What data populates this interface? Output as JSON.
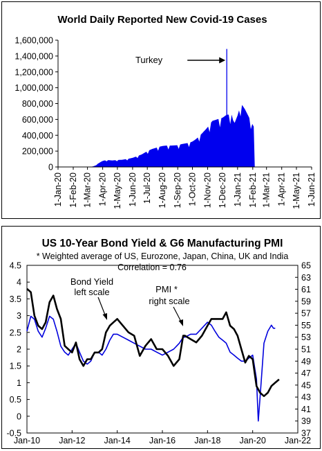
{
  "chart_data": [
    {
      "type": "bar",
      "title": "World Daily Reported New Covid-19 Cases",
      "xlabel": "",
      "ylabel": "",
      "ylim": [
        0,
        1600000
      ],
      "y_ticks": [
        "0",
        "200,000",
        "400,000",
        "600,000",
        "800,000",
        "1,000,000",
        "1,200,000",
        "1,400,000",
        "1,600,000"
      ],
      "x_ticks": [
        "1-Jan-20",
        "1-Feb-20",
        "1-Mar-20",
        "1-Apr-20",
        "1-May-20",
        "1-Jun-20",
        "1-Jul-20",
        "1-Aug-20",
        "1-Sep-20",
        "1-Oct-20",
        "1-Nov-20",
        "1-Dec-20",
        "1-Jan-21",
        "1-Feb-21",
        "1-Mar-21",
        "1-Apr-21",
        "1-May-21",
        "1-Jun-21"
      ],
      "x_range": [
        "2020-01-01",
        "2021-06-01"
      ],
      "grid": false,
      "bar_color": "#0000ee",
      "annotation": {
        "text": "Turkey",
        "date": "2020-12-10",
        "value": 1490000
      },
      "series": [
        {
          "values": [
            [
              "2020-01-22",
              600
            ],
            [
              "2020-02-01",
              2100
            ],
            [
              "2020-02-10",
              3000
            ],
            [
              "2020-02-20",
              1200
            ],
            [
              "2020-03-01",
              2000
            ],
            [
              "2020-03-10",
              4500
            ],
            [
              "2020-03-15",
              12000
            ],
            [
              "2020-03-20",
              32000
            ],
            [
              "2020-03-25",
              52000
            ],
            [
              "2020-04-01",
              77000
            ],
            [
              "2020-04-10",
              88000
            ],
            [
              "2020-04-20",
              82000
            ],
            [
              "2020-05-01",
              88000
            ],
            [
              "2020-05-10",
              90000
            ],
            [
              "2020-05-20",
              100000
            ],
            [
              "2020-06-01",
              115000
            ],
            [
              "2020-06-10",
              135000
            ],
            [
              "2020-06-20",
              160000
            ],
            [
              "2020-07-01",
              200000
            ],
            [
              "2020-07-10",
              225000
            ],
            [
              "2020-07-20",
              245000
            ],
            [
              "2020-08-01",
              265000
            ],
            [
              "2020-08-10",
              270000
            ],
            [
              "2020-08-20",
              270000
            ],
            [
              "2020-09-01",
              275000
            ],
            [
              "2020-09-10",
              290000
            ],
            [
              "2020-09-20",
              300000
            ],
            [
              "2020-10-01",
              320000
            ],
            [
              "2020-10-10",
              360000
            ],
            [
              "2020-10-20",
              420000
            ],
            [
              "2020-11-01",
              500000
            ],
            [
              "2020-11-10",
              580000
            ],
            [
              "2020-11-20",
              600000
            ],
            [
              "2020-12-01",
              620000
            ],
            [
              "2020-12-10",
              660000
            ],
            [
              "2020-12-20",
              660000
            ],
            [
              "2020-12-25",
              540000
            ],
            [
              "2021-01-01",
              650000
            ],
            [
              "2021-01-08",
              800000
            ],
            [
              "2021-01-15",
              740000
            ],
            [
              "2021-01-20",
              680000
            ],
            [
              "2021-01-25",
              620000
            ],
            [
              "2021-02-01",
              530000
            ],
            [
              "2021-02-05",
              490000
            ]
          ]
        }
      ]
    },
    {
      "type": "line",
      "title": "US 10-Year Bond Yield & G6 Manufacturing PMI",
      "subtitle": "* Weighted average of US, Eurozone, Japan, China, UK and India",
      "annotations": [
        "Correlation = 0.76",
        "Bond Yield",
        "left scale",
        "PMI *",
        "right scale"
      ],
      "x_ticks": [
        "Jan-10",
        "Jan-12",
        "Jan-14",
        "Jan-16",
        "Jan-18",
        "Jan-20",
        "Jan-22"
      ],
      "x_range": [
        2010,
        2022
      ],
      "y_left": {
        "ylim": [
          -0.5,
          4.5
        ],
        "ticks": [
          "4.5",
          "4",
          "3.5",
          "3",
          "2.5",
          "2",
          "1.5",
          "1",
          "0.5",
          "0",
          "-0.5"
        ]
      },
      "y_right": {
        "ylim": [
          37,
          65
        ],
        "ticks": [
          "65",
          "63",
          "61",
          "59",
          "57",
          "55",
          "53",
          "51",
          "49",
          "47",
          "45",
          "43",
          "41",
          "39",
          "37"
        ]
      },
      "grid": false,
      "series": [
        {
          "axis": "left",
          "color": "#000000",
          "x": [
            2010.0,
            2010.17,
            2010.33,
            2010.5,
            2010.67,
            2010.83,
            2011.0,
            2011.17,
            2011.33,
            2011.5,
            2011.67,
            2011.83,
            2012.0,
            2012.17,
            2012.33,
            2012.5,
            2012.67,
            2012.83,
            2013.0,
            2013.17,
            2013.33,
            2013.5,
            2013.67,
            2013.83,
            2014.0,
            2014.25,
            2014.5,
            2014.75,
            2015.0,
            2015.25,
            2015.5,
            2015.75,
            2016.0,
            2016.25,
            2016.5,
            2016.75,
            2016.92,
            2017.0,
            2017.25,
            2017.5,
            2017.75,
            2018.0,
            2018.17,
            2018.33,
            2018.5,
            2018.67,
            2018.83,
            2019.0,
            2019.17,
            2019.33,
            2019.5,
            2019.67,
            2019.83,
            2020.0,
            2020.17,
            2020.33,
            2020.5,
            2020.67,
            2020.83,
            2021.0,
            2021.17
          ],
          "values": [
            3.8,
            3.7,
            3.0,
            2.7,
            2.6,
            2.8,
            3.4,
            3.6,
            3.2,
            2.9,
            2.1,
            2.0,
            1.9,
            2.2,
            1.7,
            1.5,
            1.7,
            1.7,
            1.9,
            1.9,
            2.0,
            2.5,
            2.7,
            2.8,
            2.9,
            2.7,
            2.5,
            2.4,
            1.8,
            2.1,
            2.3,
            2.0,
            2.0,
            1.8,
            1.5,
            1.7,
            2.4,
            2.4,
            2.3,
            2.2,
            2.4,
            2.7,
            2.9,
            2.9,
            2.9,
            2.9,
            3.1,
            2.7,
            2.6,
            2.4,
            2.0,
            1.6,
            1.8,
            1.7,
            0.9,
            0.7,
            0.6,
            0.7,
            0.9,
            1.0,
            1.1
          ]
        },
        {
          "axis": "right",
          "color": "#0000dd",
          "x": [
            2010.0,
            2010.17,
            2010.33,
            2010.5,
            2010.67,
            2010.83,
            2011.0,
            2011.17,
            2011.33,
            2011.5,
            2011.67,
            2011.83,
            2012.0,
            2012.17,
            2012.33,
            2012.5,
            2012.67,
            2012.83,
            2013.0,
            2013.17,
            2013.33,
            2013.5,
            2013.67,
            2013.83,
            2014.0,
            2014.25,
            2014.5,
            2014.75,
            2015.0,
            2015.25,
            2015.5,
            2015.75,
            2016.0,
            2016.25,
            2016.5,
            2016.75,
            2016.92,
            2017.0,
            2017.25,
            2017.5,
            2017.75,
            2018.0,
            2018.17,
            2018.33,
            2018.5,
            2018.67,
            2018.83,
            2019.0,
            2019.17,
            2019.33,
            2019.5,
            2019.67,
            2019.83,
            2020.0,
            2020.17,
            2020.25,
            2020.33,
            2020.5,
            2020.67,
            2020.83,
            2020.92,
            2021.0
          ],
          "values": [
            54.0,
            56.5,
            56.0,
            54.0,
            53.0,
            54.5,
            56.5,
            56.0,
            54.0,
            51.5,
            50.5,
            50.0,
            51.0,
            52.0,
            50.5,
            49.0,
            48.5,
            49.0,
            50.5,
            50.5,
            50.0,
            51.0,
            52.5,
            53.5,
            53.5,
            53.0,
            52.5,
            52.0,
            51.5,
            51.0,
            51.0,
            50.5,
            50.0,
            50.5,
            51.0,
            52.0,
            53.0,
            53.0,
            53.5,
            53.5,
            54.5,
            55.5,
            55.0,
            54.0,
            53.0,
            52.5,
            52.0,
            50.5,
            50.0,
            49.5,
            49.0,
            49.0,
            49.5,
            50.0,
            46.0,
            39.0,
            43.0,
            52.0,
            54.0,
            55.0,
            54.5,
            54.5
          ]
        }
      ]
    }
  ]
}
